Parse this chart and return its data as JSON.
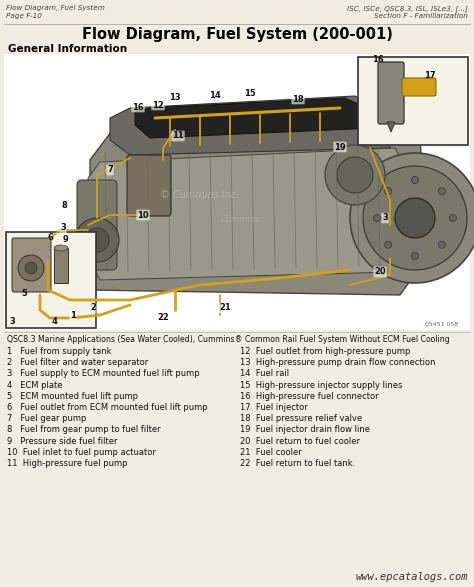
{
  "bg_color": "#f0ece0",
  "diagram_bg": "#ffffff",
  "header_left_line1": "Flow Diagram, Fuel System",
  "header_left_line2": "Page F-10",
  "header_right_line1": "ISC, ISCe, QSC8.3, ISL, ISLe3, [...]",
  "header_right_line2": "Section F - Familiarization",
  "title": "Flow Diagram, Fuel System (200-001)",
  "subtitle": "General Information",
  "caption": "QSC8.3 Marine Applications (Sea Water Cooled), Cummins® Common Rail Fuel System Without ECM Fuel Cooling",
  "items_left": [
    "1   Fuel from supply tank",
    "2   Fuel filter and water separator",
    "3   Fuel supply to ECM mounted fuel lift pump",
    "4   ECM plate",
    "5   ECM mounted fuel lift pump",
    "6   Fuel outlet from ECM mounted fuel lift pump",
    "7   Fuel gear pump",
    "8   Fuel from gear pump to fuel filter",
    "9   Pressure side fuel filter",
    "10  Fuel inlet to fuel pump actuator",
    "11  High-pressure fuel pump"
  ],
  "items_right": [
    "12  Fuel outlet from high-pressure pump",
    "13  High-pressure pump drain flow connection",
    "14  Fuel rail",
    "15  High-pressure injector supply lines",
    "16  High-pressure fuel connector",
    "17  Fuel injector",
    "18  Fuel pressure relief valve",
    "19  Fuel injector drain flow line",
    "20  Fuel return to fuel cooler",
    "21  Fuel cooler",
    "22  Fuel return to fuel tank."
  ],
  "watermark": "www.epcatalogs.com",
  "text_color": "#111111",
  "header_color": "#444444",
  "title_color": "#000000",
  "engine_color": "#888880",
  "fuel_line_color": "#d4a017",
  "dark_engine": "#555550",
  "light_engine": "#aaaaaa",
  "inset_bg": "#f8f4e8"
}
